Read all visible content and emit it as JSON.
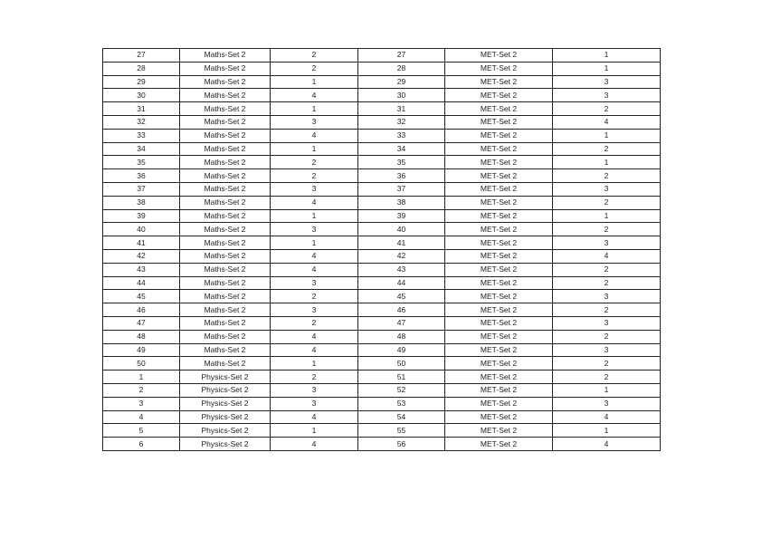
{
  "table": {
    "rows": [
      [
        "27",
        "Maths-Set 2",
        "2",
        "27",
        "MET-Set 2",
        "1"
      ],
      [
        "28",
        "Maths-Set 2",
        "2",
        "28",
        "MET-Set 2",
        "1"
      ],
      [
        "29",
        "Maths-Set 2",
        "1",
        "29",
        "MET-Set 2",
        "3"
      ],
      [
        "30",
        "Maths-Set 2",
        "4",
        "30",
        "MET-Set 2",
        "3"
      ],
      [
        "31",
        "Maths-Set 2",
        "1",
        "31",
        "MET-Set 2",
        "2"
      ],
      [
        "32",
        "Maths-Set 2",
        "3",
        "32",
        "MET-Set 2",
        "4"
      ],
      [
        "33",
        "Maths-Set 2",
        "4",
        "33",
        "MET-Set 2",
        "1"
      ],
      [
        "34",
        "Maths-Set 2",
        "1",
        "34",
        "MET-Set 2",
        "2"
      ],
      [
        "35",
        "Maths-Set 2",
        "2",
        "35",
        "MET-Set 2",
        "1"
      ],
      [
        "36",
        "Maths-Set 2",
        "2",
        "36",
        "MET-Set 2",
        "2"
      ],
      [
        "37",
        "Maths-Set 2",
        "3",
        "37",
        "MET-Set 2",
        "3"
      ],
      [
        "38",
        "Maths-Set 2",
        "4",
        "38",
        "MET-Set 2",
        "2"
      ],
      [
        "39",
        "Maths-Set 2",
        "1",
        "39",
        "MET-Set 2",
        "1"
      ],
      [
        "40",
        "Maths-Set 2",
        "3",
        "40",
        "MET-Set 2",
        "2"
      ],
      [
        "41",
        "Maths-Set 2",
        "1",
        "41",
        "MET-Set 2",
        "3"
      ],
      [
        "42",
        "Maths-Set 2",
        "4",
        "42",
        "MET-Set 2",
        "4"
      ],
      [
        "43",
        "Maths-Set 2",
        "4",
        "43",
        "MET-Set 2",
        "2"
      ],
      [
        "44",
        "Maths-Set 2",
        "3",
        "44",
        "MET-Set 2",
        "2"
      ],
      [
        "45",
        "Maths-Set 2",
        "2",
        "45",
        "MET-Set 2",
        "3"
      ],
      [
        "46",
        "Maths-Set 2",
        "3",
        "46",
        "MET-Set 2",
        "2"
      ],
      [
        "47",
        "Maths-Set 2",
        "2",
        "47",
        "MET-Set 2",
        "3"
      ],
      [
        "48",
        "Maths-Set 2",
        "4",
        "48",
        "MET-Set 2",
        "2"
      ],
      [
        "49",
        "Maths-Set 2",
        "4",
        "49",
        "MET-Set 2",
        "3"
      ],
      [
        "50",
        "Maths-Set 2",
        "1",
        "50",
        "MET-Set 2",
        "2"
      ],
      [
        "1",
        "Physics-Set 2",
        "2",
        "51",
        "MET-Set 2",
        "2"
      ],
      [
        "2",
        "Physics-Set 2",
        "3",
        "52",
        "MET-Set 2",
        "1"
      ],
      [
        "3",
        "Physics-Set 2",
        "3",
        "53",
        "MET-Set 2",
        "3"
      ],
      [
        "4",
        "Physics-Set 2",
        "4",
        "54",
        "MET-Set 2",
        "4"
      ],
      [
        "5",
        "Physics-Set 2",
        "1",
        "55",
        "MET-Set 2",
        "1"
      ],
      [
        "6",
        "Physics-Set 2",
        "4",
        "56",
        "MET-Set 2",
        "4"
      ]
    ]
  }
}
